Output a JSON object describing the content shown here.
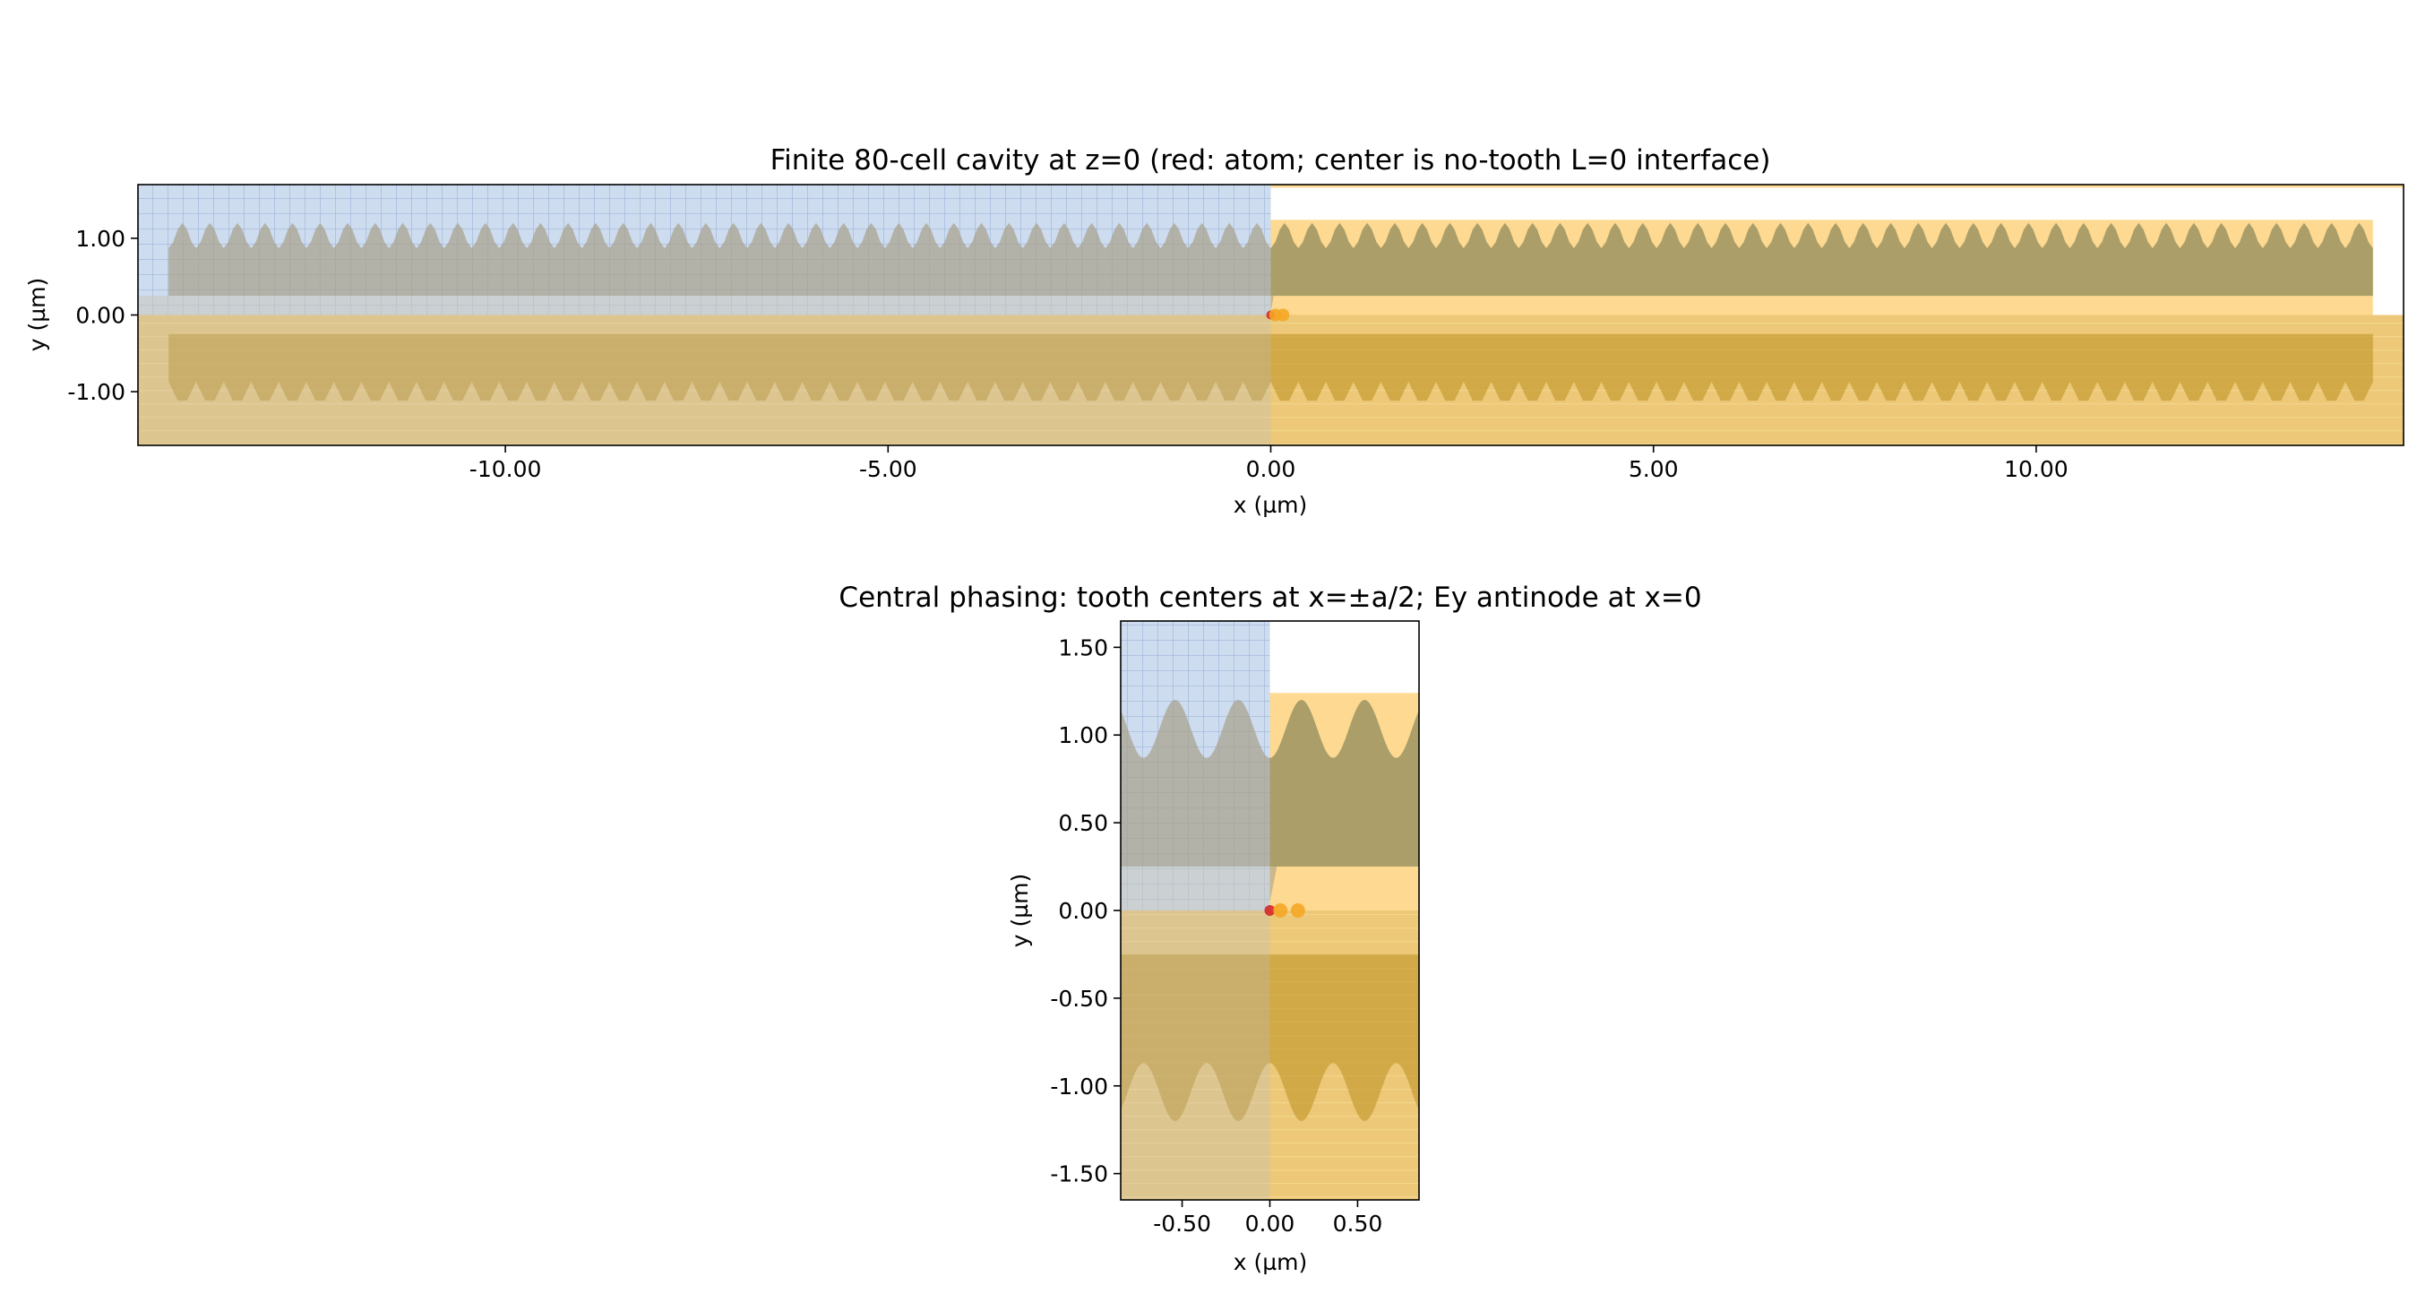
{
  "chart_data": [
    {
      "type": "scatter",
      "title": "Finite 80-cell cavity at z=0 (red: atom; center is no-tooth L=0 interface)",
      "xlabel": "x (µm)",
      "ylabel": "y (µm)",
      "xlim": [
        -14.8,
        14.8
      ],
      "ylim": [
        -1.7,
        1.7
      ],
      "xticks": [
        -10,
        -5,
        0,
        5,
        10
      ],
      "xtick_labels": [
        "-10.00",
        "-5.00",
        "0.00",
        "5.00",
        "10.00"
      ],
      "yticks": [
        1,
        0,
        -1
      ],
      "ytick_labels": [
        "1.00",
        "0.00",
        "-1.00"
      ],
      "tooth_period": 0.36,
      "grid": false,
      "overlay_regions": [
        {
          "name": "mesh-override",
          "x": [
            -14.8,
            0
          ],
          "y": [
            0,
            1.7
          ],
          "color": "#aec4e6"
        },
        {
          "name": "substrate",
          "x": [
            -14.8,
            14.8
          ],
          "y": [
            -1.7,
            0
          ],
          "color": "#e0a625"
        },
        {
          "name": "upper-rail",
          "x": [
            0,
            14.4
          ],
          "y": [
            0.25,
            1.22
          ],
          "color": "#fbbf4a"
        },
        {
          "name": "lower-rail",
          "x": [
            -14.4,
            14.4
          ],
          "y": [
            -1.22,
            -0.25
          ],
          "color": "#c89a2e"
        }
      ],
      "points": [
        {
          "label": "atom",
          "x": 0.0,
          "y": 0.0,
          "color": "#d62728"
        },
        {
          "label": "source",
          "x": 0.06,
          "y": 0.0,
          "color": "#f5a623"
        },
        {
          "label": "monitor",
          "x": 0.16,
          "y": 0.0,
          "color": "#f5a623"
        }
      ]
    },
    {
      "type": "scatter",
      "title": "Central phasing: tooth centers at x=±a/2; Ey antinode at x=0",
      "xlabel": "x (µm)",
      "ylabel": "y (µm)",
      "xlim": [
        -0.85,
        0.85
      ],
      "ylim": [
        -1.65,
        1.65
      ],
      "xticks": [
        -0.5,
        0,
        0.5
      ],
      "xtick_labels": [
        "-0.50",
        "0.00",
        "0.50"
      ],
      "yticks": [
        1.5,
        1,
        0.5,
        0,
        -0.5,
        -1,
        -1.5
      ],
      "ytick_labels": [
        "1.50",
        "1.00",
        "0.50",
        "0.00",
        "-0.50",
        "-1.00",
        "-1.50"
      ],
      "tooth_period": 0.36,
      "grid": false,
      "overlay_regions": [
        {
          "name": "mesh-override",
          "x": [
            -0.85,
            0
          ],
          "y": [
            0,
            1.65
          ],
          "color": "#aec4e6"
        },
        {
          "name": "substrate",
          "x": [
            -0.85,
            0.85
          ],
          "y": [
            -1.65,
            0
          ],
          "color": "#e0a625"
        },
        {
          "name": "upper-rail",
          "x": [
            0,
            0.85
          ],
          "y": [
            0.25,
            1.22
          ],
          "color": "#fbbf4a"
        },
        {
          "name": "lower-rail",
          "x": [
            -0.85,
            0.85
          ],
          "y": [
            -1.22,
            -0.25
          ],
          "color": "#c89a2e"
        }
      ],
      "points": [
        {
          "label": "atom",
          "x": 0.0,
          "y": 0.0,
          "color": "#d62728"
        },
        {
          "label": "source",
          "x": 0.06,
          "y": 0.0,
          "color": "#f5a623"
        },
        {
          "label": "monitor",
          "x": 0.16,
          "y": 0.0,
          "color": "#f5a623"
        }
      ]
    }
  ]
}
